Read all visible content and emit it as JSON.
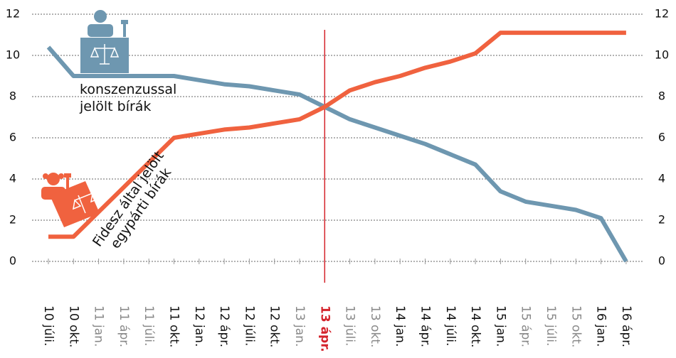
{
  "chart_data": {
    "type": "line",
    "categories": [
      "10 júli.",
      "10 okt.",
      "11 jan.",
      "11 ápr.",
      "11 júli.",
      "11 okt.",
      "12 jan.",
      "12 ápr.",
      "12 júli.",
      "12 okt.",
      "13 jan.",
      "13 ápr.",
      "13 júli.",
      "13 okt.",
      "14 jan.",
      "14 ápr.",
      "14 júli.",
      "14 okt.",
      "15 jan.",
      "15 ápr.",
      "15 júli.",
      "15 okt.",
      "16 jan.",
      "16 ápr."
    ],
    "category_colors": [
      "#111",
      "#111",
      "#888",
      "#888",
      "#888",
      "#111",
      "#111",
      "#111",
      "#111",
      "#111",
      "#888",
      "#d4232b",
      "#888",
      "#888",
      "#111",
      "#111",
      "#111",
      "#111",
      "#111",
      "#888",
      "#888",
      "#888",
      "#111",
      "#111"
    ],
    "series": [
      {
        "color": "#6e97b0",
        "values": [
          10.4,
          9,
          9,
          9,
          9,
          9,
          8.8,
          8.6,
          8.5,
          8.3,
          8.1,
          7.5,
          6.9,
          6.5,
          6.1,
          5.7,
          5.2,
          4.7,
          3.4,
          2.9,
          2.7,
          2.5,
          2.1,
          0
        ]
      },
      {
        "color": "#f0623f",
        "values": [
          1.2,
          1.2,
          2.4,
          3.6,
          4.8,
          6.0,
          6.2,
          6.4,
          6.5,
          6.7,
          6.9,
          7.5,
          8.3,
          8.7,
          9.0,
          9.4,
          9.7,
          10.1,
          11.1,
          11.1,
          11.1,
          11.1,
          11.1,
          11.1
        ]
      }
    ],
    "annotations": [
      [
        "konszenzussal",
        "jelölt bírák"
      ],
      [
        "Fidesz által jelölt",
        "egypárti bírák"
      ]
    ],
    "vline_category": 11,
    "vline_color": "#d4232b",
    "ylim": [
      0,
      12
    ],
    "yticks": [
      0,
      2,
      4,
      6,
      8,
      10,
      12
    ],
    "grid": true
  }
}
